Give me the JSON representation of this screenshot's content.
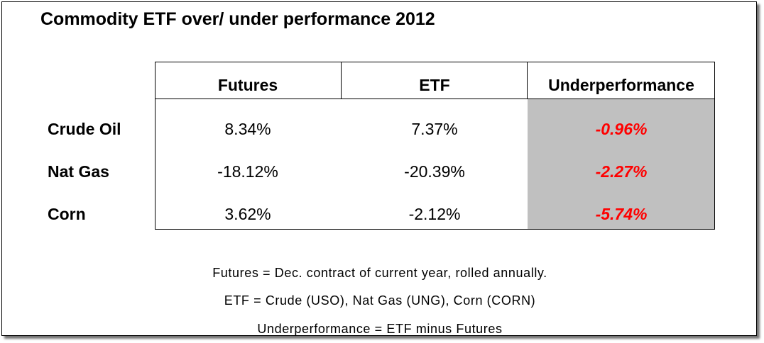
{
  "title": "Commodity ETF over/ under performance 2012",
  "columns": [
    "Futures",
    "ETF",
    "Underperformance"
  ],
  "rows": [
    {
      "label": "Crude Oil",
      "futures": "8.34%",
      "etf": "7.37%",
      "underperformance": "-0.96%"
    },
    {
      "label": "Nat Gas",
      "futures": "-18.12%",
      "etf": "-20.39%",
      "underperformance": "-2.27%"
    },
    {
      "label": "Corn",
      "futures": "3.62%",
      "etf": "-2.12%",
      "underperformance": "-5.74%"
    }
  ],
  "notes": [
    "Futures = Dec. contract of current year, rolled annually.",
    "ETF = Crude (USO), Nat Gas (UNG), Corn (CORN)",
    "Underperformance = ETF minus Futures"
  ],
  "colors": {
    "underperformance_text": "#ff0000",
    "underperformance_fill": "#c0c0c0"
  },
  "chart_data": {
    "type": "table",
    "title": "Commodity ETF over/ under performance 2012",
    "columns": [
      "Futures",
      "ETF",
      "Underperformance"
    ],
    "row_labels": [
      "Crude Oil",
      "Nat Gas",
      "Corn"
    ],
    "values": [
      [
        8.34,
        7.37,
        -0.96
      ],
      [
        -18.12,
        -20.39,
        -2.27
      ],
      [
        3.62,
        -2.12,
        -5.74
      ]
    ],
    "unit": "%"
  }
}
